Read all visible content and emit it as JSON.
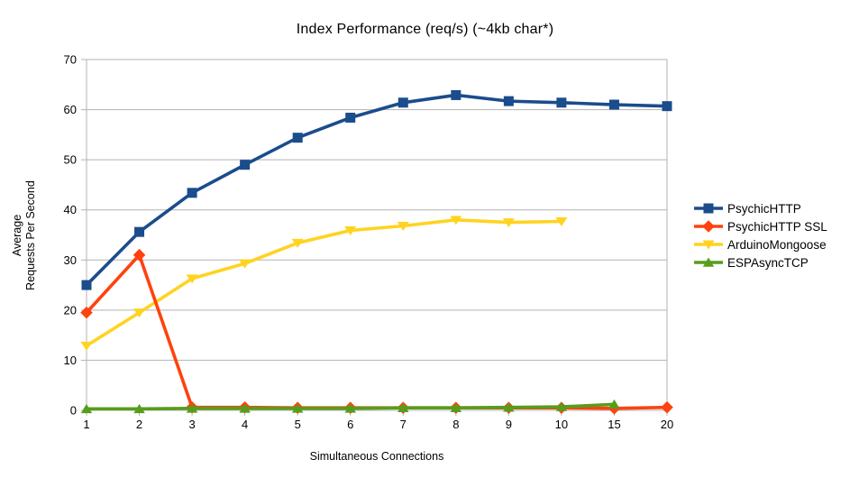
{
  "chart_data": {
    "type": "line",
    "title": "Index Performance (req/s) (~4kb char*)",
    "xlabel": "Simultaneous Connections",
    "ylabel_line1": "Average",
    "ylabel_line2": "Requests Per Second",
    "categories": [
      "1",
      "2",
      "3",
      "4",
      "5",
      "6",
      "7",
      "8",
      "9",
      "10",
      "15",
      "20"
    ],
    "y_ticks": [
      0,
      10,
      20,
      30,
      40,
      50,
      60,
      70
    ],
    "ylim": [
      0,
      70
    ],
    "grid": "horizontal-only",
    "grid_color": "#b3b3b3",
    "axis_color": "#b3b3b3",
    "text_color": "#000000",
    "legend_position": "right",
    "series": [
      {
        "name": "PsychicHTTP",
        "color": "#1b4c8c",
        "marker": "square",
        "values": [
          25.0,
          35.6,
          43.4,
          49.0,
          54.4,
          58.4,
          61.4,
          62.9,
          61.7,
          61.4,
          61.0,
          60.7
        ]
      },
      {
        "name": "PsychicHTTP SSL",
        "color": "#ff420e",
        "marker": "diamond",
        "values": [
          19.5,
          31.0,
          0.6,
          0.6,
          0.5,
          0.5,
          0.5,
          0.5,
          0.5,
          0.5,
          0.4,
          0.6
        ]
      },
      {
        "name": "ArduinoMongoose",
        "color": "#ffd320",
        "marker": "triangle-down",
        "values": [
          12.9,
          19.5,
          26.3,
          29.3,
          33.4,
          35.9,
          36.8,
          38.0,
          37.5,
          37.7,
          null,
          null
        ]
      },
      {
        "name": "ESPAsyncTCP",
        "color": "#579d1c",
        "marker": "triangle-up",
        "values": [
          0.3,
          0.3,
          0.4,
          0.4,
          0.4,
          0.4,
          0.5,
          0.5,
          0.6,
          0.7,
          1.2,
          null
        ]
      }
    ],
    "plot_order": [
      0,
      2,
      1,
      3
    ]
  }
}
